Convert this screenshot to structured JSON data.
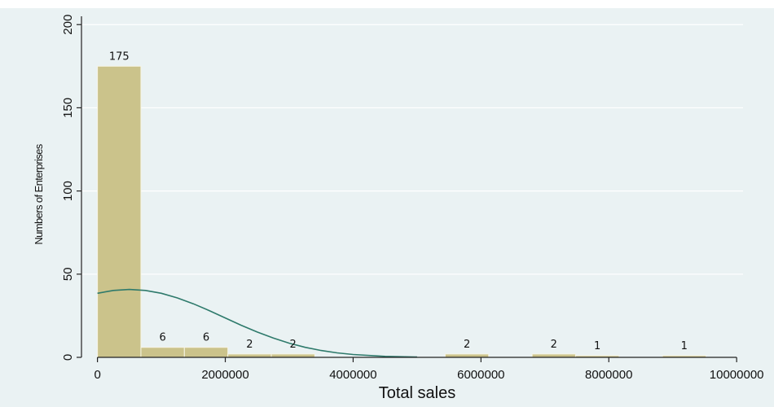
{
  "chart_data": {
    "type": "bar",
    "title": "",
    "xlabel": "Total sales",
    "ylabel": "Numbers of Enterprises",
    "xlim": [
      -250000,
      10100000
    ],
    "ylim": [
      0,
      205
    ],
    "x_ticks": [
      0,
      2000000,
      4000000,
      6000000,
      8000000,
      10000000
    ],
    "x_tick_labels": [
      "0",
      "2000000",
      "4000000",
      "6000000",
      "8000000",
      "10000000"
    ],
    "y_ticks": [
      0,
      50,
      100,
      150,
      200
    ],
    "y_tick_labels": [
      "0",
      "50",
      "100",
      "150",
      "200"
    ],
    "grid": true,
    "legend": "none",
    "bin_width": 680000,
    "bars": [
      {
        "start": 0,
        "value": 175,
        "label": "175"
      },
      {
        "start": 680000,
        "value": 6,
        "label": "6"
      },
      {
        "start": 1360000,
        "value": 6,
        "label": "6"
      },
      {
        "start": 2040000,
        "value": 2,
        "label": "2"
      },
      {
        "start": 2720000,
        "value": 2,
        "label": "2"
      },
      {
        "start": 5440000,
        "value": 2,
        "label": "2"
      },
      {
        "start": 6800000,
        "value": 2,
        "label": "2"
      },
      {
        "start": 7480000,
        "value": 1,
        "label": "1"
      },
      {
        "start": 8840000,
        "value": 1,
        "label": "1"
      }
    ],
    "normal_curve": {
      "type": "density",
      "x": [
        0,
        250000,
        500000,
        750000,
        1000000,
        1250000,
        1500000,
        1750000,
        2000000,
        2250000,
        2500000,
        2750000,
        3000000,
        3250000,
        3500000,
        3750000,
        4000000,
        4500000,
        5000000
      ],
      "y": [
        38.5,
        40.2,
        40.8,
        40.2,
        38.5,
        35.7,
        32.2,
        28.1,
        23.7,
        19.3,
        15.2,
        11.6,
        8.5,
        6.0,
        4.1,
        2.7,
        1.7,
        0.6,
        0.2
      ]
    },
    "colors": {
      "bar_fill": "#cbc38b",
      "bar_stroke": "#f7f5e6",
      "curve": "#2e7a6b",
      "background": "#eaf2f3"
    }
  }
}
